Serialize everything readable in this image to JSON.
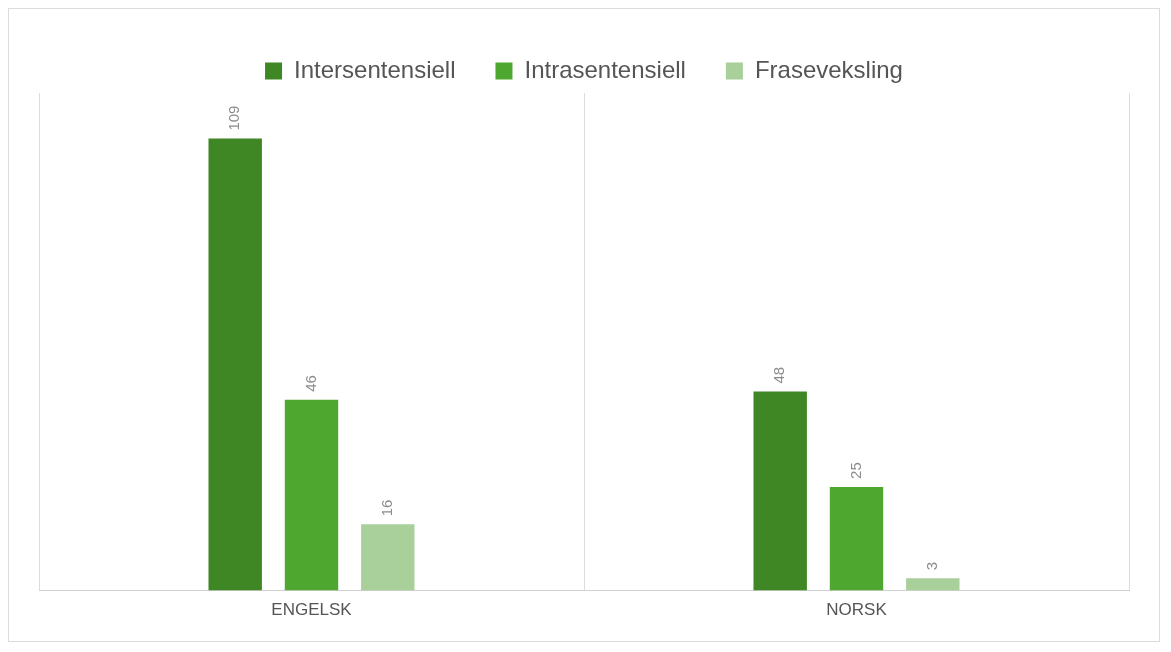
{
  "chart_data": {
    "type": "bar",
    "categories": [
      "ENGELSK",
      "NORSK"
    ],
    "series": [
      {
        "name": "Intersentensiell",
        "color": "#3f8624",
        "values": [
          109,
          48
        ]
      },
      {
        "name": "Intrasentensiell",
        "color": "#4ea72e",
        "values": [
          46,
          25
        ]
      },
      {
        "name": "Fraseveksling",
        "color": "#a9cf9a",
        "values": [
          16,
          3
        ]
      }
    ],
    "data_labels": true,
    "legend": "top",
    "grid": "x",
    "tick_labels": "x"
  }
}
